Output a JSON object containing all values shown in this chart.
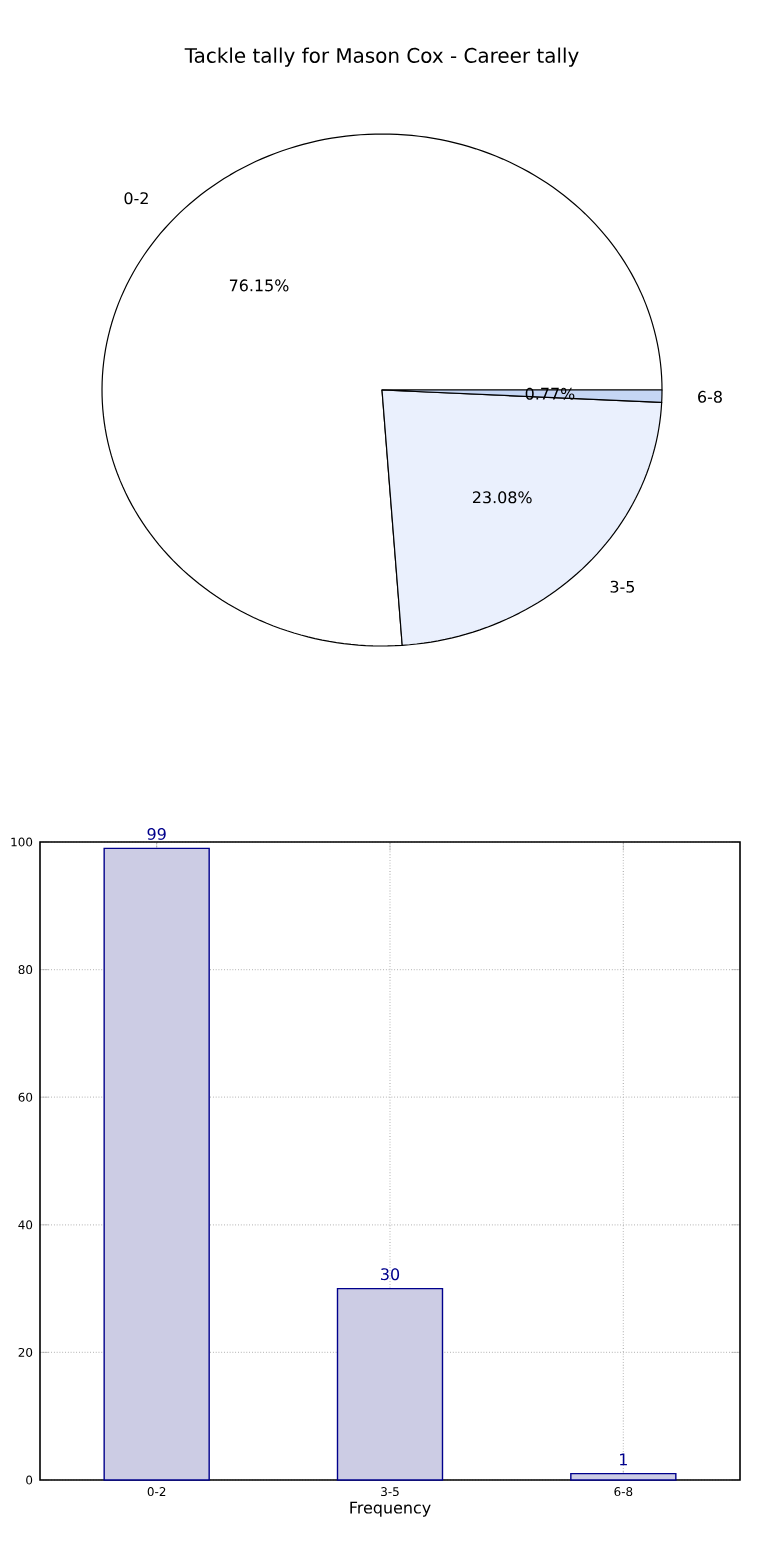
{
  "chart_data": [
    {
      "type": "pie",
      "title": "Tackle tally for Mason Cox - Career tally",
      "categories": [
        "0-2",
        "3-5",
        "6-8"
      ],
      "values": [
        76.15,
        23.08,
        0.77
      ],
      "value_labels": [
        "76.15%",
        "23.08%",
        "0.77%"
      ],
      "colors": [
        "#ffffff",
        "#eaf0fd",
        "#c5d6f4"
      ]
    },
    {
      "type": "bar",
      "categories": [
        "0-2",
        "3-5",
        "6-8"
      ],
      "values": [
        99,
        30,
        1
      ],
      "color": "#ccccE4",
      "xlabel": "Frequency",
      "ylim": [
        0,
        100
      ],
      "yticks": [
        0,
        20,
        40,
        60,
        80,
        100
      ],
      "grid": true,
      "data_labels": true
    }
  ]
}
